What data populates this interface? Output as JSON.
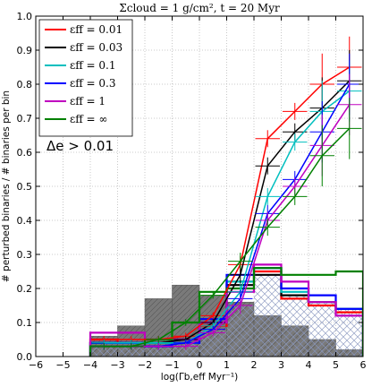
{
  "chart_data": {
    "type": "line",
    "title": "Σcloud = 1 g/cm², t = 20 Myr",
    "xlabel": "log(Γb,eff Myr⁻¹)",
    "ylabel": "# perturbed binaries / # binaries per bin",
    "xlim": [
      -6,
      6
    ],
    "ylim": [
      0,
      1
    ],
    "grid": true,
    "legend_position": "top-left",
    "annotation": "Δe > 0.01",
    "x_ticks": [
      "−6",
      "−5",
      "−4",
      "−3",
      "−2",
      "−1",
      "0",
      "1",
      "2",
      "3",
      "4",
      "5",
      "6"
    ],
    "y_ticks": [
      "0.0",
      "0.1",
      "0.2",
      "0.3",
      "0.4",
      "0.5",
      "0.6",
      "0.7",
      "0.8",
      "0.9",
      "1.0"
    ],
    "series": [
      {
        "name": "εff = 0.01",
        "color": "#ff0000",
        "x": [
          -3.5,
          -2.5,
          -1.5,
          -0.5,
          0.5,
          1.5,
          2.5,
          3.5,
          4.5,
          5.5
        ],
        "y": [
          0.05,
          0.05,
          0.05,
          0.06,
          0.12,
          0.27,
          0.64,
          0.72,
          0.8,
          0.85
        ]
      },
      {
        "name": "εff = 0.03",
        "color": "#000000",
        "x": [
          -3.5,
          -2.5,
          -1.5,
          -0.5,
          0.5,
          1.5,
          2.5,
          3.5,
          4.5,
          5.5
        ],
        "y": [
          0.04,
          0.04,
          0.04,
          0.05,
          0.1,
          0.24,
          0.56,
          0.66,
          0.73,
          0.81
        ]
      },
      {
        "name": "εff = 0.1",
        "color": "#00bfbf",
        "x": [
          -3.5,
          -2.5,
          -1.5,
          -0.5,
          0.5,
          1.5,
          2.5,
          3.5,
          4.5,
          5.5
        ],
        "y": [
          0.04,
          0.04,
          0.04,
          0.04,
          0.09,
          0.19,
          0.47,
          0.63,
          0.72,
          0.78
        ]
      },
      {
        "name": "εff = 0.3",
        "color": "#0000ff",
        "x": [
          -3.5,
          -2.5,
          -1.5,
          -0.5,
          0.5,
          1.5,
          2.5,
          3.5,
          4.5,
          5.5
        ],
        "y": [
          0.03,
          0.03,
          0.03,
          0.04,
          0.08,
          0.17,
          0.42,
          0.52,
          0.66,
          0.8
        ]
      },
      {
        "name": "εff = 1",
        "color": "#bf00bf",
        "x": [
          -3.5,
          -2.5,
          -1.5,
          -0.5,
          0.5,
          1.5,
          2.5,
          3.5,
          4.5,
          5.5
        ],
        "y": [
          0.03,
          0.03,
          0.03,
          0.03,
          0.07,
          0.15,
          0.4,
          0.5,
          0.62,
          0.74
        ]
      },
      {
        "name": "εff = ∞",
        "color": "#008000",
        "x": [
          -3.5,
          -2.5,
          -1.5,
          -0.5,
          0.5,
          1.5,
          2.5,
          3.5,
          4.5,
          5.5
        ],
        "y": [
          0.03,
          0.03,
          0.05,
          0.1,
          0.18,
          0.28,
          0.38,
          0.47,
          0.59,
          0.67
        ]
      }
    ],
    "histograms": {
      "bin_edges": [
        -4,
        -3,
        -2,
        -1,
        0,
        1,
        2,
        3,
        4,
        5,
        6
      ],
      "filled_gray": [
        0.06,
        0.09,
        0.17,
        0.21,
        0.18,
        0.16,
        0.12,
        0.09,
        0.05,
        0.02
      ],
      "hatched": [
        0.03,
        0.03,
        0.03,
        0.04,
        0.08,
        0.15,
        0.24,
        0.18,
        0.16,
        0.14
      ],
      "outlines": [
        {
          "color": "#ff0000",
          "values": [
            0.05,
            0.04,
            0.04,
            0.04,
            0.09,
            0.22,
            0.25,
            0.17,
            0.15,
            0.13
          ]
        },
        {
          "color": "#000000",
          "values": [
            0.04,
            0.04,
            0.04,
            0.05,
            0.1,
            0.21,
            0.24,
            0.18,
            0.16,
            0.14
          ]
        },
        {
          "color": "#00bfbf",
          "values": [
            0.04,
            0.04,
            0.04,
            0.04,
            0.1,
            0.22,
            0.26,
            0.19,
            0.16,
            0.14
          ]
        },
        {
          "color": "#0000ff",
          "values": [
            0.04,
            0.04,
            0.03,
            0.04,
            0.11,
            0.24,
            0.26,
            0.2,
            0.18,
            0.14
          ]
        },
        {
          "color": "#bf00bf",
          "values": [
            0.07,
            0.07,
            0.05,
            0.05,
            0.1,
            0.19,
            0.27,
            0.22,
            0.16,
            0.12
          ]
        },
        {
          "color": "#008000",
          "values": [
            0.03,
            0.03,
            0.05,
            0.1,
            0.19,
            0.2,
            0.26,
            0.24,
            0.24,
            0.25
          ]
        }
      ]
    }
  }
}
